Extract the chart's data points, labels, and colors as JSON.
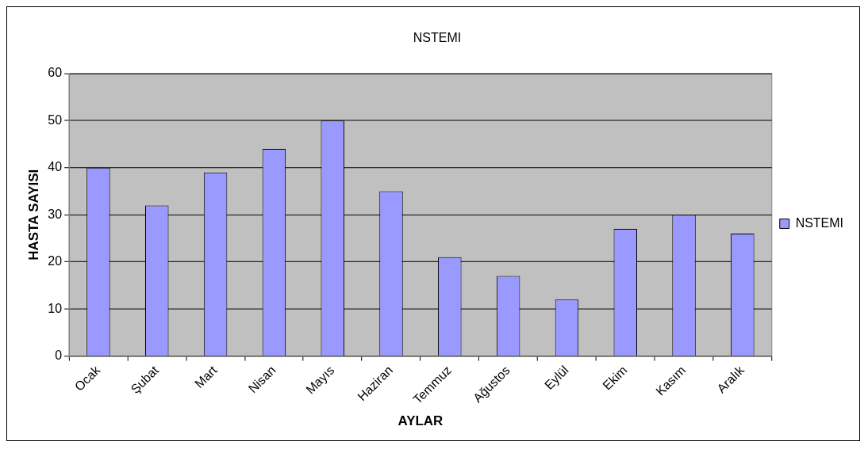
{
  "chart_data": {
    "type": "bar",
    "title": "NSTEMI",
    "xlabel": "AYLAR",
    "ylabel": "HASTA SAYISI",
    "categories": [
      "Ocak",
      "Şubat",
      "Mart",
      "Nisan",
      "Mayıs",
      "Haziran",
      "Temmuz",
      "Ağustos",
      "Eylül",
      "Ekim",
      "Kasım",
      "Aralık"
    ],
    "series": [
      {
        "name": "NSTEMI",
        "color": "#9999ff",
        "values": [
          40,
          32,
          39,
          44,
          50,
          35,
          21,
          17,
          12,
          27,
          30,
          26
        ]
      }
    ],
    "ylim": [
      0,
      60
    ],
    "yticks": [
      0,
      10,
      20,
      30,
      40,
      50,
      60
    ],
    "grid": "y",
    "legend": "right"
  }
}
